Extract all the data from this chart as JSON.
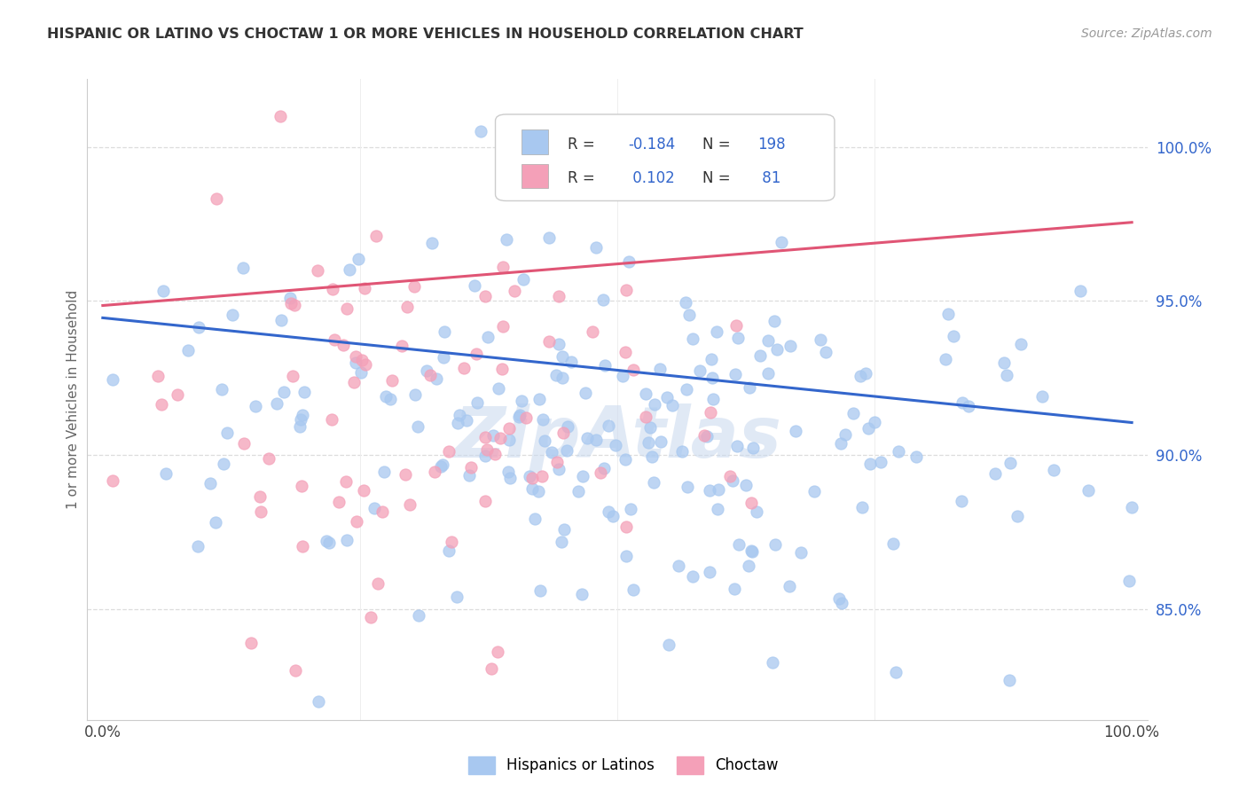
{
  "title": "HISPANIC OR LATINO VS CHOCTAW 1 OR MORE VEHICLES IN HOUSEHOLD CORRELATION CHART",
  "source": "Source: ZipAtlas.com",
  "ylabel": "1 or more Vehicles in Household",
  "legend_label1": "Hispanics or Latinos",
  "legend_label2": "Choctaw",
  "color_blue": "#A8C8F0",
  "color_pink": "#F4A0B8",
  "line_color_blue": "#3366CC",
  "line_color_pink": "#E05575",
  "R1": -0.184,
  "N1": 198,
  "R2": 0.102,
  "N2": 81,
  "blue_trend_x0": 0.0,
  "blue_trend_y0": 0.9445,
  "blue_trend_x1": 1.0,
  "blue_trend_y1": 0.9105,
  "pink_trend_x0": 0.0,
  "pink_trend_y0": 0.9485,
  "pink_trend_x1": 1.0,
  "pink_trend_y1": 0.9755,
  "xlim": [
    -0.015,
    1.015
  ],
  "ylim": [
    0.814,
    1.022
  ],
  "ytick_vals": [
    1.0,
    0.95,
    0.9,
    0.85
  ],
  "ytick_labels": [
    "100.0%",
    "95.0%",
    "90.0%",
    "85.0%"
  ],
  "xtick_vals": [
    0.0,
    0.25,
    0.5,
    0.75,
    1.0
  ],
  "xtick_labels": [
    "0.0%",
    "",
    "",
    "",
    "100.0%"
  ],
  "background_color": "#FFFFFF",
  "grid_color": "#DDDDDD",
  "watermark": "ZipAtlas"
}
